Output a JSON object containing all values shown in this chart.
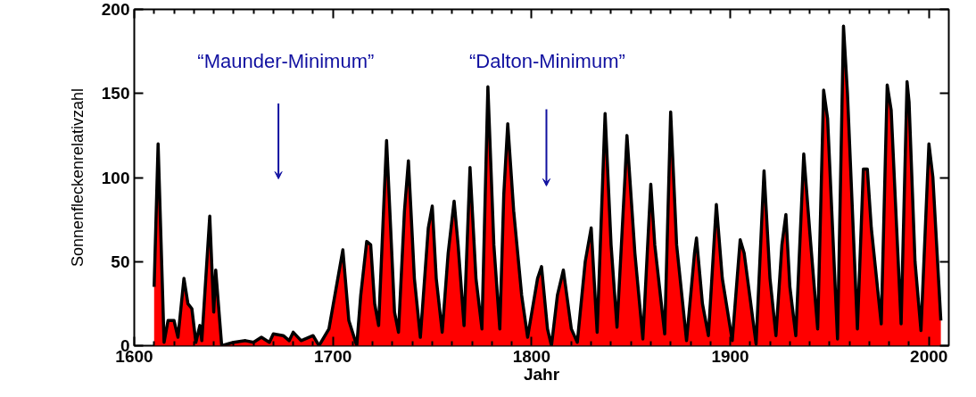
{
  "chart_data": {
    "type": "area",
    "xlabel": "Jahr",
    "ylabel": "Sonnenfleckenrelativzahl",
    "xlim": [
      1600,
      2010
    ],
    "ylim": [
      0,
      200
    ],
    "xticks": [
      1600,
      1700,
      1800,
      1900,
      2000
    ],
    "yticks": [
      0,
      50,
      100,
      150,
      200
    ],
    "grid": false,
    "annotations": [
      "“Maunder-Minimum”",
      "“Dalton-Minimum”"
    ],
    "series": [
      {
        "color": "#ff0000",
        "x": [
          1610,
          1612,
          1615,
          1617,
          1620,
          1622,
          1625,
          1627,
          1629,
          1631,
          1633,
          1634,
          1636,
          1638,
          1640,
          1641,
          1644,
          1650,
          1656,
          1660,
          1664,
          1668,
          1670,
          1675,
          1678,
          1680,
          1684,
          1690,
          1693,
          1698,
          1705,
          1708,
          1712,
          1714,
          1717,
          1719,
          1721,
          1723,
          1727,
          1731,
          1733,
          1736,
          1738,
          1741,
          1744,
          1748,
          1750,
          1752,
          1755,
          1758,
          1761,
          1763,
          1766,
          1769,
          1772,
          1775,
          1778,
          1781,
          1784,
          1786,
          1788,
          1791,
          1795,
          1798,
          1803,
          1805,
          1808,
          1810,
          1813,
          1816,
          1820,
          1823,
          1827,
          1830,
          1833,
          1837,
          1840,
          1843,
          1847,
          1848,
          1852,
          1856,
          1860,
          1862,
          1867,
          1870,
          1873,
          1878,
          1882,
          1883,
          1886,
          1889,
          1893,
          1896,
          1901,
          1905,
          1907,
          1913,
          1917,
          1920,
          1923,
          1926,
          1928,
          1930,
          1933,
          1937,
          1940,
          1944,
          1947,
          1949,
          1954,
          1957,
          1959,
          1964,
          1967,
          1969,
          1971,
          1976,
          1979,
          1981,
          1986,
          1989,
          1990,
          1993,
          1996,
          2000,
          2002,
          2006
        ],
        "values": [
          35,
          120,
          2,
          15,
          15,
          5,
          40,
          25,
          22,
          2,
          12,
          3,
          40,
          77,
          20,
          45,
          0,
          2,
          3,
          2,
          5,
          2,
          7,
          6,
          3,
          8,
          3,
          6,
          0,
          10,
          57,
          15,
          0,
          30,
          62,
          60,
          25,
          12,
          122,
          20,
          8,
          80,
          110,
          40,
          5,
          70,
          83,
          40,
          8,
          55,
          86,
          60,
          12,
          106,
          40,
          10,
          154,
          60,
          10,
          90,
          132,
          80,
          30,
          5,
          40,
          47,
          10,
          0,
          30,
          45,
          10,
          2,
          50,
          70,
          8,
          138,
          60,
          11,
          100,
          125,
          55,
          4,
          96,
          60,
          7,
          139,
          60,
          3,
          55,
          64,
          25,
          6,
          84,
          40,
          3,
          63,
          55,
          1,
          104,
          40,
          6,
          60,
          78,
          35,
          6,
          114,
          68,
          10,
          152,
          135,
          4,
          190,
          150,
          10,
          105,
          105,
          70,
          13,
          155,
          140,
          13,
          157,
          145,
          50,
          9,
          120,
          100,
          15
        ]
      }
    ]
  }
}
